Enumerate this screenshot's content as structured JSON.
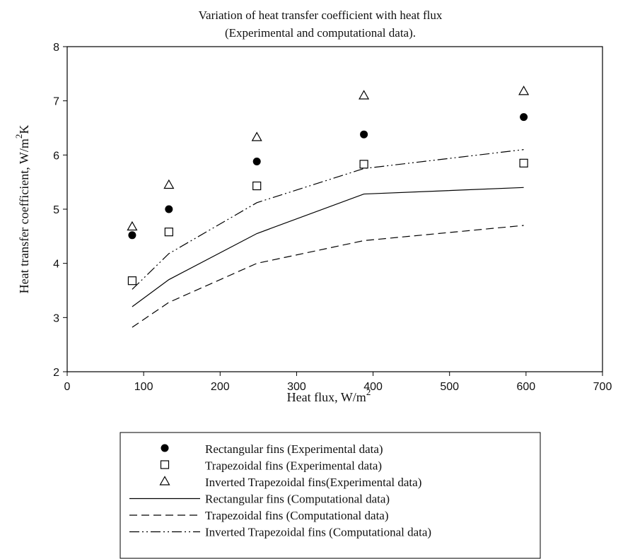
{
  "chart_data": {
    "type": "scatter",
    "title": "Variation of heat transfer coefficient with heat flux",
    "subtitle": "(Experimental and computational data).",
    "xlabel": "Heat flux, W/m",
    "xlabel_sup": "2",
    "ylabel": "Heat transfer coefficient, W/m",
    "ylabel_sup": "2",
    "ylabel_suffix": "K",
    "xlim": [
      0,
      700
    ],
    "ylim": [
      2,
      8
    ],
    "xticks": [
      "0",
      "100",
      "200",
      "300",
      "400",
      "500",
      "600",
      "700"
    ],
    "yticks": [
      "2",
      "3",
      "4",
      "5",
      "6",
      "7",
      "8"
    ],
    "grid": false,
    "legend_position": "bottom",
    "series": [
      {
        "name": "Rectangular fins (Experimental data)",
        "kind": "marker",
        "marker": "filled-circle",
        "x": [
          85,
          133,
          248,
          388,
          597
        ],
        "y": [
          4.52,
          5.0,
          5.88,
          6.38,
          6.7
        ]
      },
      {
        "name": "Trapezoidal fins (Experimental data)",
        "kind": "marker",
        "marker": "open-square",
        "x": [
          85,
          133,
          248,
          388,
          597
        ],
        "y": [
          3.68,
          4.58,
          5.43,
          5.83,
          5.85
        ]
      },
      {
        "name": "Inverted Trapezoidal fins(Experimental data)",
        "kind": "marker",
        "marker": "open-triangle",
        "x": [
          85,
          133,
          248,
          388,
          597
        ],
        "y": [
          4.68,
          5.45,
          6.33,
          7.1,
          7.18
        ]
      },
      {
        "name": "Rectangular fins (Computational data)",
        "kind": "line",
        "dash": "solid",
        "x": [
          85,
          133,
          248,
          388,
          597
        ],
        "y": [
          3.2,
          3.7,
          4.55,
          5.28,
          5.4
        ]
      },
      {
        "name": "Trapezoidal fins (Computational data)",
        "kind": "line",
        "dash": "dashed",
        "x": [
          85,
          133,
          248,
          388,
          597
        ],
        "y": [
          2.82,
          3.28,
          4.0,
          4.42,
          4.7
        ]
      },
      {
        "name": "Inverted Trapezoidal fins (Computational data)",
        "kind": "line",
        "dash": "dash-dot-dot",
        "x": [
          85,
          133,
          248,
          388,
          597
        ],
        "y": [
          3.52,
          4.18,
          5.12,
          5.75,
          6.1
        ]
      }
    ]
  }
}
